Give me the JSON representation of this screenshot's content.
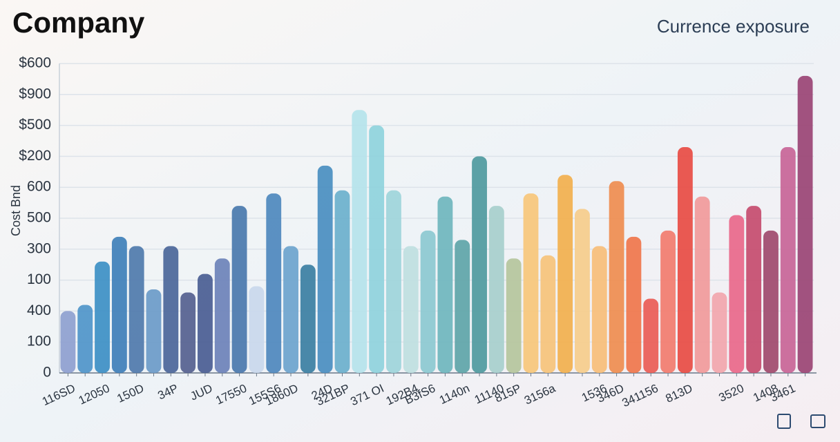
{
  "chart_data": {
    "type": "bar",
    "title": "Company",
    "subtitle": "Currence exposure",
    "y_label": "Cost Bnd",
    "categories": [
      "116SD",
      null,
      "12050",
      null,
      "150D",
      null,
      "34P",
      null,
      "JUD",
      null,
      "17550",
      null,
      "155S6",
      "1860D",
      null,
      "24D",
      "321BP",
      null,
      "371 OI",
      null,
      "192B4",
      "B3fS6",
      null,
      "1140n",
      null,
      "11140",
      "815P",
      null,
      "3156a",
      null,
      null,
      "1536",
      "346D",
      null,
      "341156",
      null,
      "813D",
      null,
      null,
      "3520",
      null,
      "1408",
      "3461",
      null
    ],
    "values": [
      2.0,
      2.2,
      3.6,
      4.4,
      4.1,
      2.7,
      4.1,
      2.6,
      3.2,
      3.7,
      5.4,
      2.8,
      5.8,
      4.1,
      3.5,
      6.7,
      5.9,
      8.5,
      8.0,
      5.9,
      4.1,
      4.6,
      5.7,
      4.3,
      7.0,
      5.4,
      3.7,
      5.8,
      3.8,
      6.4,
      5.3,
      4.1,
      6.2,
      4.4,
      2.4,
      4.6,
      7.3,
      5.7,
      2.6,
      5.1,
      5.4,
      4.6,
      7.3,
      9.6
    ],
    "colors": [
      "#8e9fcf",
      "#4f95c9",
      "#3d8fc4",
      "#3f7fb8",
      "#4f79ab",
      "#6b9bc8",
      "#4b6699",
      "#55618f",
      "#4a5d93",
      "#6c82b8",
      "#4a78ad",
      "#c9d8ec",
      "#4e88bd",
      "#6ca4cd",
      "#3b7fa2",
      "#4a8ec0",
      "#6bb0cc",
      "#b5e3ea",
      "#8fd2dc",
      "#9ed5da",
      "#bfe0e0",
      "#8cc9d0",
      "#6fb6bd",
      "#5ea5a8",
      "#4f9a9e",
      "#a7cfcc",
      "#b5c59c",
      "#f7c77a",
      "#f6c37a",
      "#f2b04d",
      "#f6cd8b",
      "#f7be78",
      "#ef8d4f",
      "#f0764b",
      "#ea5c55",
      "#f27c6e",
      "#e84c43",
      "#f19a9a",
      "#f2a6ad",
      "#e9688a",
      "#c54c6e",
      "#a04a6d",
      "#c86597",
      "#9a4474"
    ],
    "ylim": [
      0,
      10
    ],
    "yticks": [
      {
        "value": 0,
        "label": "0"
      },
      {
        "value": 1,
        "label": "100"
      },
      {
        "value": 2,
        "label": "400"
      },
      {
        "value": 3,
        "label": "100"
      },
      {
        "value": 4,
        "label": "300"
      },
      {
        "value": 5,
        "label": "500"
      },
      {
        "value": 6,
        "label": "600"
      },
      {
        "value": 7,
        "label": "$200"
      },
      {
        "value": 8,
        "label": "$500"
      },
      {
        "value": 9,
        "label": "$900"
      },
      {
        "value": 10,
        "label": "$600"
      }
    ],
    "grid": true
  }
}
